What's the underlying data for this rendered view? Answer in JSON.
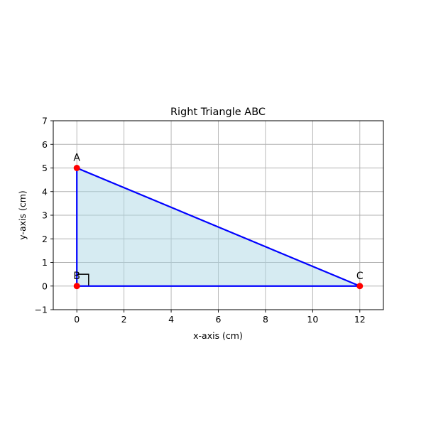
{
  "chart_data": {
    "type": "scatter",
    "title": "Right Triangle ABC",
    "xlabel": "x-axis (cm)",
    "ylabel": "y-axis (cm)",
    "xlim": [
      -1,
      13
    ],
    "ylim": [
      -1,
      7
    ],
    "xticks": [
      0,
      2,
      4,
      6,
      8,
      10,
      12
    ],
    "yticks": [
      -1,
      0,
      1,
      2,
      3,
      4,
      5,
      6,
      7
    ],
    "ytick_labels": [
      "−1",
      "0",
      "1",
      "2",
      "3",
      "4",
      "5",
      "6",
      "7"
    ],
    "grid": true,
    "points": [
      {
        "label": "A",
        "x": 0,
        "y": 5
      },
      {
        "label": "B",
        "x": 0,
        "y": 0
      },
      {
        "label": "C",
        "x": 12,
        "y": 0
      }
    ],
    "polygon_fill": "#add8e6",
    "polygon_fill_opacity": 0.5,
    "edge_color": "#0000ff",
    "point_color": "#ff0000",
    "right_angle_marker": {
      "at": "B",
      "size": 0.5
    }
  }
}
